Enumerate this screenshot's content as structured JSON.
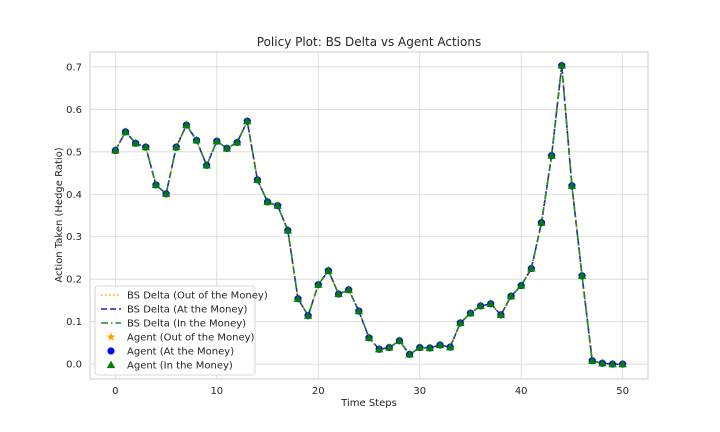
{
  "chart_data": {
    "type": "line",
    "title": "Policy Plot: BS Delta vs Agent Actions",
    "xlabel": "Time Steps",
    "ylabel": "Action Taken (Hedge Ratio)",
    "xlim": [
      -2.5,
      52.5
    ],
    "ylim": [
      -0.035,
      0.735
    ],
    "xticks": [
      0,
      10,
      20,
      30,
      40,
      50
    ],
    "yticks": [
      0.0,
      0.1,
      0.2,
      0.3,
      0.4,
      0.5,
      0.6,
      0.7
    ],
    "ytick_labels": [
      "0.0",
      "0.1",
      "0.2",
      "0.3",
      "0.4",
      "0.5",
      "0.6",
      "0.7"
    ],
    "grid": true,
    "legend_position": "lower-left",
    "x": [
      0,
      1,
      2,
      3,
      4,
      5,
      6,
      7,
      8,
      9,
      10,
      11,
      12,
      13,
      14,
      15,
      16,
      17,
      18,
      19,
      20,
      21,
      22,
      23,
      24,
      25,
      26,
      27,
      28,
      29,
      30,
      31,
      32,
      33,
      34,
      35,
      36,
      37,
      38,
      39,
      40,
      41,
      42,
      43,
      44,
      45,
      46,
      47,
      48,
      49,
      50
    ],
    "values": [
      0.503,
      0.547,
      0.52,
      0.511,
      0.422,
      0.401,
      0.511,
      0.563,
      0.527,
      0.468,
      0.525,
      0.508,
      0.522,
      0.572,
      0.434,
      0.382,
      0.373,
      0.315,
      0.154,
      0.114,
      0.187,
      0.22,
      0.165,
      0.175,
      0.125,
      0.062,
      0.035,
      0.039,
      0.055,
      0.023,
      0.039,
      0.038,
      0.045,
      0.04,
      0.097,
      0.12,
      0.137,
      0.142,
      0.116,
      0.16,
      0.185,
      0.225,
      0.333,
      0.491,
      0.703,
      0.42,
      0.208,
      0.008,
      0.002,
      0.0,
      0.0
    ],
    "series": [
      {
        "name": "BS Delta (Out of the Money)",
        "kind": "line",
        "style": "dotted",
        "color": "#ffa500"
      },
      {
        "name": "BS Delta (At the Money)",
        "kind": "line",
        "style": "dashed",
        "color": "#1f1fbf"
      },
      {
        "name": "BS Delta (In the Money)",
        "kind": "line",
        "style": "dashdot",
        "color": "#228b22"
      },
      {
        "name": "Agent (Out of the Money)",
        "kind": "marker",
        "marker": "star",
        "color": "#ffa500"
      },
      {
        "name": "Agent (At the Money)",
        "kind": "marker",
        "marker": "circle",
        "color": "#0000ff"
      },
      {
        "name": "Agent (In the Money)",
        "kind": "marker",
        "marker": "triangle",
        "color": "#008000"
      }
    ]
  }
}
